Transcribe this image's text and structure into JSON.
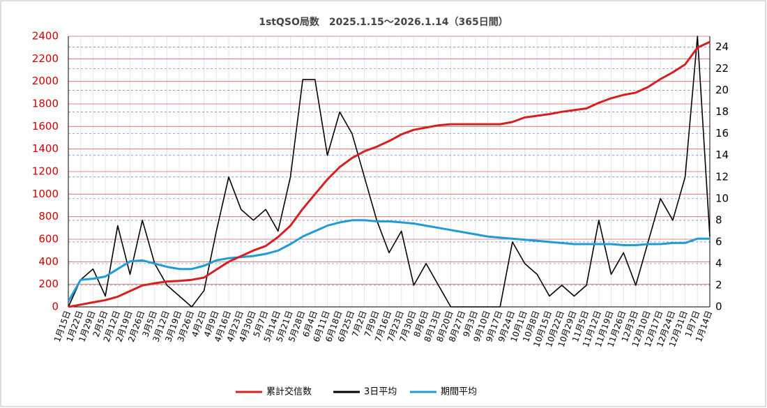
{
  "chart_data": {
    "type": "line",
    "title": "1stQSO局数　2025.1.15～2026.1.14（365日間）",
    "categories": [
      "1月15日",
      "1月22日",
      "1月29日",
      "2月5日",
      "2月12日",
      "2月19日",
      "2月26日",
      "3月5日",
      "3月12日",
      "3月19日",
      "3月26日",
      "4月2日",
      "4月9日",
      "4月16日",
      "4月23日",
      "4月30日",
      "5月7日",
      "5月14日",
      "5月21日",
      "5月28日",
      "6月4日",
      "6月11日",
      "6月18日",
      "6月25日",
      "7月2日",
      "7月9日",
      "7月16日",
      "7月23日",
      "7月30日",
      "8月6日",
      "8月13日",
      "8月20日",
      "8月27日",
      "9月3日",
      "9月10日",
      "9月17日",
      "9月24日",
      "10月1日",
      "10月8日",
      "10月15日",
      "10月22日",
      "10月29日",
      "11月5日",
      "11月12日",
      "11月19日",
      "11月26日",
      "12月3日",
      "12月10日",
      "12月17日",
      "12月24日",
      "12月31日",
      "1月7日",
      "1月14日"
    ],
    "series": [
      {
        "name": "累計交信数",
        "color": "#d42020",
        "axis": "y",
        "values": [
          0,
          20,
          40,
          60,
          90,
          140,
          190,
          210,
          225,
          230,
          240,
          260,
          330,
          400,
          450,
          500,
          540,
          620,
          720,
          870,
          1000,
          1130,
          1240,
          1320,
          1380,
          1420,
          1470,
          1530,
          1570,
          1590,
          1610,
          1620,
          1620,
          1620,
          1620,
          1620,
          1640,
          1680,
          1695,
          1710,
          1730,
          1745,
          1760,
          1810,
          1850,
          1880,
          1900,
          1950,
          2020,
          2080,
          2150,
          2300,
          2350
        ]
      },
      {
        "name": "3日平均",
        "color": "#000000",
        "axis": "y2",
        "values": [
          0,
          2.5,
          3.5,
          1,
          7.5,
          3,
          8,
          4,
          2,
          1,
          0,
          1.5,
          7,
          12,
          9,
          8,
          9,
          7,
          12,
          21,
          21,
          14,
          18,
          16,
          12,
          8,
          5,
          7,
          2,
          4,
          2,
          0,
          0,
          0,
          0,
          0,
          6,
          4,
          3,
          1,
          2,
          1,
          2,
          8,
          3,
          5,
          2,
          6,
          10,
          8,
          12,
          25,
          6.5
        ]
      },
      {
        "name": "期間平均",
        "color": "#1f9bd6",
        "axis": "y2",
        "values": [
          0.5,
          2.5,
          2.6,
          2.8,
          3.5,
          4.2,
          4.3,
          4.0,
          3.7,
          3.5,
          3.5,
          3.8,
          4.3,
          4.5,
          4.6,
          4.7,
          4.9,
          5.2,
          5.8,
          6.5,
          7.0,
          7.5,
          7.8,
          8.0,
          8.0,
          7.9,
          7.9,
          7.8,
          7.7,
          7.5,
          7.3,
          7.1,
          6.9,
          6.7,
          6.5,
          6.4,
          6.3,
          6.2,
          6.1,
          6.0,
          5.9,
          5.8,
          5.8,
          5.8,
          5.8,
          5.7,
          5.7,
          5.8,
          5.8,
          5.9,
          5.9,
          6.3,
          6.3
        ]
      }
    ],
    "ylim": [
      0,
      2400
    ],
    "yticks": [
      0,
      200,
      400,
      600,
      800,
      1000,
      1200,
      1400,
      1600,
      1800,
      2000,
      2200,
      2400
    ],
    "y2lim": [
      0,
      25
    ],
    "y2ticks": [
      0,
      2,
      4,
      6,
      8,
      10,
      12,
      14,
      16,
      18,
      20,
      22,
      24
    ],
    "grid": true,
    "legend": "bottom"
  }
}
